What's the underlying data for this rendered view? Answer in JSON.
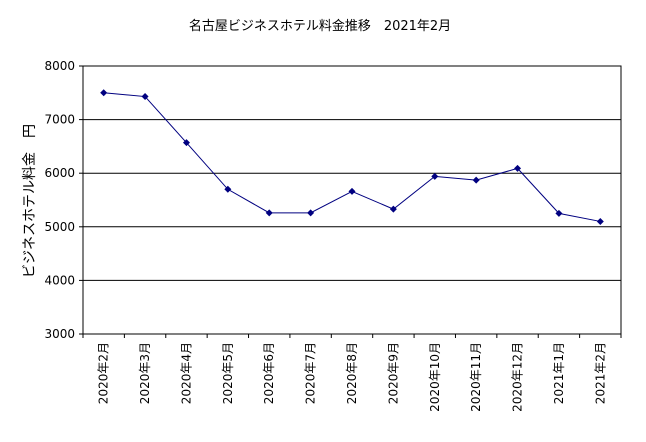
{
  "chart_data": {
    "type": "line",
    "title": "名古屋ビジネスホテル料金推移　2021年2月",
    "ylabel": "ビジネスホテル料金　円",
    "xlabel": "",
    "categories": [
      "2020年2月",
      "2020年3月",
      "2020年4月",
      "2020年5月",
      "2020年6月",
      "2020年7月",
      "2020年8月",
      "2020年9月",
      "2020年10月",
      "2020年11月",
      "2020年12月",
      "2021年1月",
      "2021年2月"
    ],
    "series": [
      {
        "values": [
          7500,
          7430,
          6570,
          5700,
          5260,
          5260,
          5660,
          5330,
          5940,
          5870,
          6090,
          5250,
          5100
        ]
      }
    ],
    "ylim": [
      3000,
      8000
    ],
    "yticks": [
      "3000",
      "4000",
      "5000",
      "6000",
      "7000",
      "8000"
    ],
    "grid": true,
    "colors": {
      "line": "#000080",
      "marker": "#000080",
      "grid": "#000000",
      "axis": "#000000"
    }
  }
}
